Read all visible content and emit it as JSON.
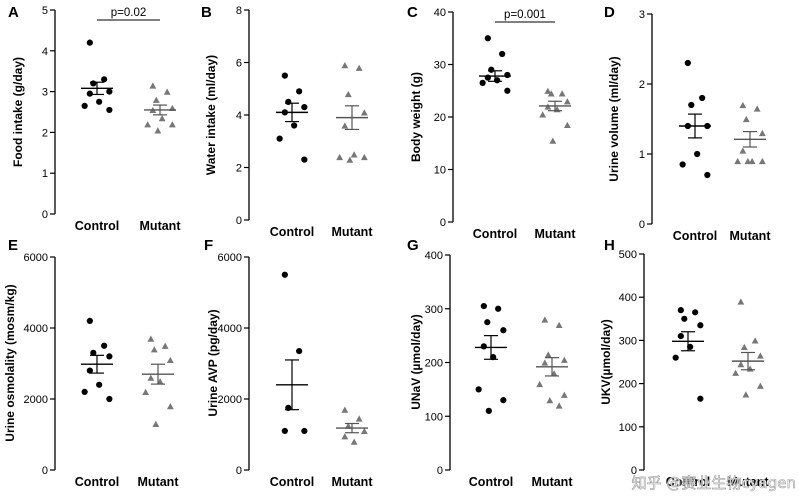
{
  "watermark": "知乎 @赛业生物cyagen",
  "chart_data": [
    {
      "panel": "A",
      "type": "scatter",
      "ylabel": "Food intake (g/day)",
      "categories": [
        "Control",
        "Mutant"
      ],
      "ylim": [
        0,
        5
      ],
      "yticks": [
        0,
        1,
        2,
        3,
        4,
        5
      ],
      "series": [
        {
          "name": "Control",
          "marker": "circle",
          "values": [
            4.2,
            3.3,
            3.2,
            3.0,
            2.95,
            2.75,
            2.65,
            2.55
          ],
          "mean": 3.08,
          "sem": 0.15
        },
        {
          "name": "Mutant",
          "marker": "triangle",
          "values": [
            3.15,
            3.0,
            2.8,
            2.6,
            2.55,
            2.35,
            2.2,
            2.2,
            2.05
          ],
          "mean": 2.55,
          "sem": 0.12
        }
      ],
      "annotation": "p=0.02"
    },
    {
      "panel": "B",
      "type": "scatter",
      "ylabel": "Water intake (ml/day)",
      "categories": [
        "Control",
        "Mutant"
      ],
      "ylim": [
        0,
        8
      ],
      "yticks": [
        0,
        2,
        4,
        6,
        8
      ],
      "series": [
        {
          "name": "Control",
          "marker": "circle",
          "values": [
            5.5,
            4.9,
            4.5,
            4.3,
            4.1,
            3.6,
            3.1,
            2.3
          ],
          "mean": 4.1,
          "sem": 0.35
        },
        {
          "name": "Mutant",
          "marker": "triangle",
          "values": [
            5.9,
            5.8,
            4.8,
            4.1,
            3.6,
            2.5,
            2.4,
            2.4,
            2.3
          ],
          "mean": 3.9,
          "sem": 0.45
        }
      ]
    },
    {
      "panel": "C",
      "type": "scatter",
      "ylabel": "Body weight (g)",
      "categories": [
        "Control",
        "Mutant"
      ],
      "ylim": [
        0,
        40
      ],
      "yticks": [
        0,
        10,
        20,
        30,
        40
      ],
      "series": [
        {
          "name": "Control",
          "marker": "circle",
          "values": [
            35,
            32,
            29,
            28,
            27.5,
            27,
            26.5,
            25
          ],
          "mean": 27.8,
          "sem": 1.0
        },
        {
          "name": "Mutant",
          "marker": "triangle",
          "values": [
            25,
            24.5,
            24.5,
            23,
            22,
            21.5,
            20.5,
            18.5,
            15.5
          ],
          "mean": 22.1,
          "sem": 0.9
        }
      ],
      "annotation": "p=0.001"
    },
    {
      "panel": "D",
      "type": "scatter",
      "ylabel": "Urine volume (ml/day)",
      "categories": [
        "Control",
        "Mutant"
      ],
      "ylim": [
        0,
        3
      ],
      "yticks": [
        0,
        1,
        2,
        3
      ],
      "series": [
        {
          "name": "Control",
          "marker": "circle",
          "values": [
            2.3,
            1.8,
            1.7,
            1.4,
            1.4,
            1.0,
            0.85,
            0.7
          ],
          "mean": 1.4,
          "sem": 0.17
        },
        {
          "name": "Mutant",
          "marker": "triangle",
          "values": [
            1.7,
            1.65,
            1.5,
            1.3,
            1.05,
            0.9,
            0.9,
            0.9,
            0.9
          ],
          "mean": 1.21,
          "sem": 0.11
        }
      ]
    },
    {
      "panel": "E",
      "type": "scatter",
      "ylabel": "Urine osmolality (mosm/kg)",
      "categories": [
        "Control",
        "Mutant"
      ],
      "ylim": [
        0,
        6000
      ],
      "yticks": [
        0,
        2000,
        4000,
        6000
      ],
      "series": [
        {
          "name": "Control",
          "marker": "circle",
          "values": [
            4200,
            3500,
            3300,
            3200,
            2800,
            2400,
            2200,
            2000
          ],
          "mean": 2980,
          "sem": 250
        },
        {
          "name": "Mutant",
          "marker": "triangle",
          "values": [
            3700,
            3500,
            3400,
            3100,
            2600,
            2500,
            2200,
            1800,
            1300
          ],
          "mean": 2700,
          "sem": 280
        }
      ]
    },
    {
      "panel": "F",
      "type": "scatter",
      "ylabel": "Urine AVP (pg/day)",
      "categories": [
        "Control",
        "Mutant"
      ],
      "ylim": [
        0,
        6000
      ],
      "yticks": [
        0,
        2000,
        4000,
        6000
      ],
      "series": [
        {
          "name": "Control",
          "marker": "circle",
          "values": [
            5500,
            3350,
            1750,
            1100,
            1100
          ],
          "mean": 2400,
          "sem": 700
        },
        {
          "name": "Mutant",
          "marker": "triangle",
          "values": [
            1700,
            1450,
            1250,
            1100,
            950,
            800
          ],
          "mean": 1180,
          "sem": 130
        }
      ]
    },
    {
      "panel": "G",
      "type": "scatter",
      "ylabel": "UNaV (µmol/day)",
      "categories": [
        "Control",
        "Mutant"
      ],
      "ylim": [
        0,
        400
      ],
      "yticks": [
        0,
        100,
        200,
        300,
        400
      ],
      "series": [
        {
          "name": "Control",
          "marker": "circle",
          "values": [
            305,
            300,
            275,
            260,
            230,
            210,
            150,
            130,
            110
          ],
          "mean": 228,
          "sem": 22
        },
        {
          "name": "Mutant",
          "marker": "triangle",
          "values": [
            280,
            270,
            215,
            205,
            200,
            180,
            160,
            140,
            130,
            120
          ],
          "mean": 192,
          "sem": 17
        }
      ]
    },
    {
      "panel": "H",
      "type": "scatter",
      "ylabel": "UKV(µmol/day)",
      "categories": [
        "Control",
        "Mutant"
      ],
      "ylim": [
        0,
        500
      ],
      "yticks": [
        0,
        100,
        200,
        300,
        400,
        500
      ],
      "series": [
        {
          "name": "Control",
          "marker": "circle",
          "values": [
            370,
            365,
            350,
            335,
            310,
            285,
            260,
            165
          ],
          "mean": 298,
          "sem": 22
        },
        {
          "name": "Mutant",
          "marker": "triangle",
          "values": [
            390,
            300,
            285,
            265,
            245,
            235,
            225,
            195,
            175
          ],
          "mean": 252,
          "sem": 20
        }
      ]
    }
  ]
}
